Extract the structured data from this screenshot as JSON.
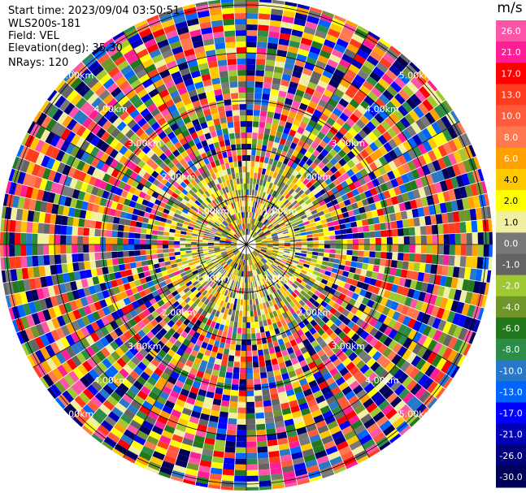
{
  "header": {
    "start_time": "Start time: 2023/09/04 03:50:51",
    "instrument": "WLS200s-181",
    "field": "Field: VEL",
    "elevation": "Elevation(deg): 35.30",
    "nrays": "NRays: 120"
  },
  "colorbar": {
    "title": "m/s",
    "levels": [
      {
        "label": "26.0",
        "color": "#ff55a9"
      },
      {
        "label": "21.0",
        "color": "#ff1e96"
      },
      {
        "label": "17.0",
        "color": "#ff0000"
      },
      {
        "label": "13.0",
        "color": "#ff3c1e"
      },
      {
        "label": "10.0",
        "color": "#ff5a3c"
      },
      {
        "label": "8.0",
        "color": "#ff7850"
      },
      {
        "label": "6.0",
        "color": "#ffa000"
      },
      {
        "label": "4.0",
        "color": "#ffc800"
      },
      {
        "label": "2.0",
        "color": "#ffff00"
      },
      {
        "label": "1.0",
        "color": "#f0f0a0"
      },
      {
        "label": "0.0",
        "color": "#787878"
      },
      {
        "label": "-1.0",
        "color": "#646464"
      },
      {
        "label": "-2.0",
        "color": "#a0c832"
      },
      {
        "label": "-4.0",
        "color": "#6e9628"
      },
      {
        "label": "-6.0",
        "color": "#23781e"
      },
      {
        "label": "-8.0",
        "color": "#2d8c46"
      },
      {
        "label": "-10.0",
        "color": "#2878c8"
      },
      {
        "label": "-13.0",
        "color": "#0064ff"
      },
      {
        "label": "-17.0",
        "color": "#0000ff"
      },
      {
        "label": "-21.0",
        "color": "#0000b4"
      },
      {
        "label": "-26.0",
        "color": "#000078"
      },
      {
        "label": "-30.0",
        "color": "#00005a"
      }
    ]
  },
  "chart_data": {
    "type": "heatmap",
    "projection": "polar-ppi",
    "field": "VEL",
    "units": "m/s",
    "range_ring_labels": [
      "1.00km",
      "1.00km",
      "1.00km",
      "1.00km",
      "2.00km",
      "2.00km",
      "2.00km",
      "2.00km",
      "3.00km",
      "3.00km",
      "3.00km",
      "3.00km",
      "4.00km",
      "4.00km",
      "4.00km",
      "4.00km",
      "5.00km",
      "5.00km",
      "5.00km",
      "5.00km"
    ],
    "range_rings_km": [
      1,
      2,
      3,
      4,
      5
    ],
    "nrays": 120,
    "elevation_deg": 35.3,
    "colorbar_ticks": [
      26.0,
      21.0,
      17.0,
      13.0,
      10.0,
      8.0,
      6.0,
      4.0,
      2.0,
      1.0,
      0.0,
      -1.0,
      -2.0,
      -4.0,
      -6.0,
      -8.0,
      -10.0,
      -13.0,
      -17.0,
      -21.0,
      -26.0,
      -30.0
    ]
  }
}
